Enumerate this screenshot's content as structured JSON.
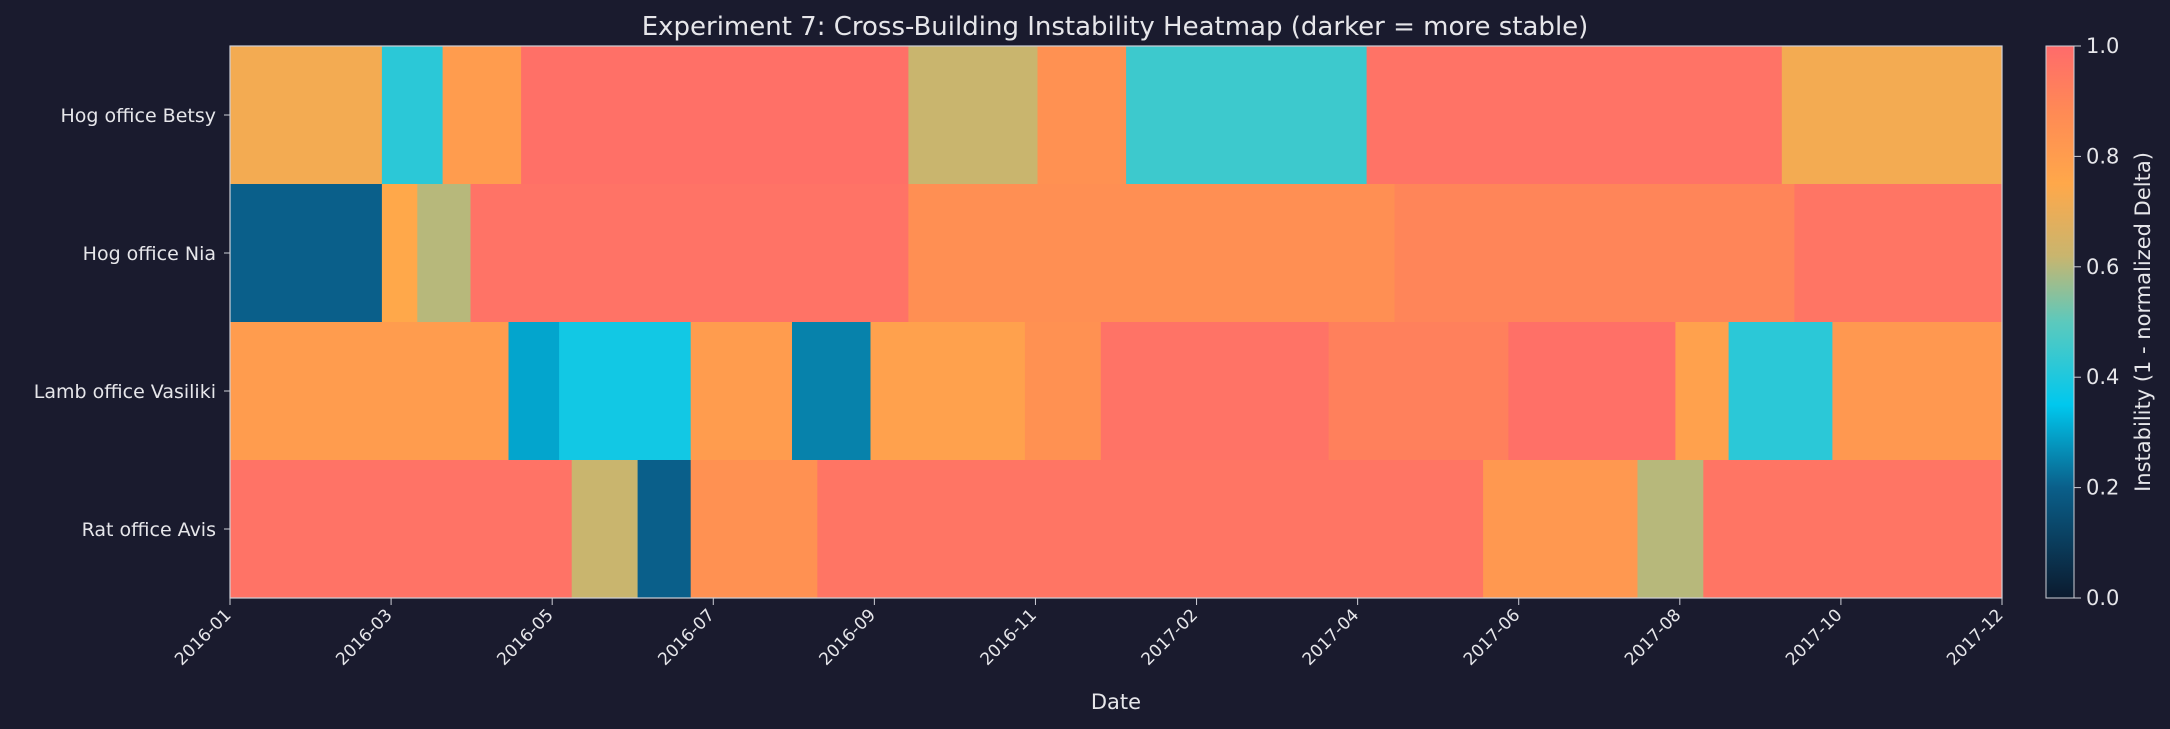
{
  "chart_data": {
    "type": "heatmap",
    "title": "Experiment 7: Cross-Building Instability Heatmap (darker = more stable)",
    "xlabel": "Date",
    "x_tick_labels": [
      "2016-01",
      "2016-03",
      "2016-05",
      "2016-07",
      "2016-09",
      "2016-11",
      "2017-02",
      "2017-04",
      "2017-06",
      "2017-08",
      "2017-10",
      "2017-12"
    ],
    "date_range": [
      "2016-01-01",
      "2017-12-01"
    ],
    "rows": [
      "Hog office Betsy",
      "Hog office Nia",
      "Lamb office Vasiliki",
      "Rat office Avis"
    ],
    "colorbar": {
      "label": "Instability (1 - normalized Delta)",
      "range": [
        0,
        1
      ],
      "ticks": [
        "0.0",
        "0.2",
        "0.4",
        "0.6",
        "0.8",
        "1.0"
      ],
      "colormap": [
        [
          0.0,
          "#0b1a2e"
        ],
        [
          0.2,
          "#0a5f8a"
        ],
        [
          0.35,
          "#00c8ee"
        ],
        [
          0.5,
          "#5cc9bd"
        ],
        [
          0.62,
          "#c9b56e"
        ],
        [
          0.75,
          "#ffa84a"
        ],
        [
          0.88,
          "#ff8a55"
        ],
        [
          1.0,
          "#ff6b6b"
        ]
      ]
    },
    "segments": [
      [
        [
          "2016-01-01",
          "2016-03-01",
          0.72
        ],
        [
          "2016-03-01",
          "2016-03-25",
          0.42
        ],
        [
          "2016-03-25",
          "2016-04-25",
          0.8
        ],
        [
          "2016-04-25",
          "2016-09-25",
          0.98
        ],
        [
          "2016-09-25",
          "2016-11-15",
          0.62
        ],
        [
          "2016-11-15",
          "2016-12-20",
          0.85
        ],
        [
          "2016-12-20",
          "2017-03-25",
          0.45
        ],
        [
          "2017-03-25",
          "2017-09-05",
          0.97
        ],
        [
          "2017-09-05",
          "2017-12-01",
          0.72
        ]
      ],
      [
        [
          "2016-01-01",
          "2016-03-01",
          0.2
        ],
        [
          "2016-03-01",
          "2016-03-15",
          0.75
        ],
        [
          "2016-03-15",
          "2016-04-05",
          0.6
        ],
        [
          "2016-04-05",
          "2016-09-25",
          0.97
        ],
        [
          "2016-09-25",
          "2017-04-05",
          0.86
        ],
        [
          "2017-04-05",
          "2017-09-10",
          0.9
        ],
        [
          "2017-09-10",
          "2017-12-01",
          0.96
        ]
      ],
      [
        [
          "2016-01-01",
          "2016-04-20",
          0.8
        ],
        [
          "2016-04-20",
          "2016-05-10",
          0.3
        ],
        [
          "2016-05-10",
          "2016-07-01",
          0.38
        ],
        [
          "2016-07-01",
          "2016-08-10",
          0.8
        ],
        [
          "2016-08-10",
          "2016-09-10",
          0.25
        ],
        [
          "2016-09-10",
          "2016-11-10",
          0.78
        ],
        [
          "2016-11-10",
          "2016-12-10",
          0.85
        ],
        [
          "2016-12-10",
          "2017-03-10",
          0.97
        ],
        [
          "2017-03-10",
          "2017-05-20",
          0.92
        ],
        [
          "2017-05-20",
          "2017-07-25",
          0.98
        ],
        [
          "2017-07-25",
          "2017-08-15",
          0.78
        ],
        [
          "2017-08-15",
          "2017-09-25",
          0.42
        ],
        [
          "2017-09-25",
          "2017-12-01",
          0.82
        ]
      ],
      [
        [
          "2016-01-01",
          "2016-05-15",
          0.97
        ],
        [
          "2016-05-15",
          "2016-06-10",
          0.62
        ],
        [
          "2016-06-10",
          "2016-07-01",
          0.2
        ],
        [
          "2016-07-01",
          "2016-08-20",
          0.85
        ],
        [
          "2016-08-20",
          "2017-05-10",
          0.96
        ],
        [
          "2017-05-10",
          "2017-07-10",
          0.82
        ],
        [
          "2017-07-10",
          "2017-08-05",
          0.6
        ],
        [
          "2017-08-05",
          "2017-12-01",
          0.96
        ]
      ]
    ]
  }
}
